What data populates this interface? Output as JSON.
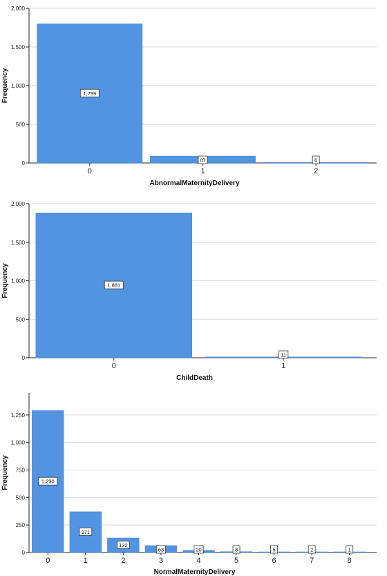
{
  "chart_data": [
    {
      "type": "bar",
      "title": "",
      "xlabel": "AbnormalMaternityDelivery",
      "ylabel": "Frequency",
      "categories": [
        "0",
        "1",
        "2"
      ],
      "values": [
        1799,
        87,
        6
      ],
      "data_labels": [
        "1,799",
        "87",
        "6"
      ],
      "ylim": [
        0,
        2000
      ],
      "yticks": [
        0,
        500,
        1000,
        1500,
        2000
      ],
      "ytick_labels": [
        "0",
        "500",
        "1,000",
        "1,500",
        "2,000"
      ],
      "grid": true,
      "legend": "none",
      "colors": {
        "bar": "#5293e2",
        "bar_edge": "#4a86d0",
        "grid": "#d9d9d9",
        "axis": "#222222"
      }
    },
    {
      "type": "bar",
      "title": "",
      "xlabel": "ChildDeath",
      "ylabel": "Frequency",
      "categories": [
        "0",
        "1"
      ],
      "values": [
        1881,
        11
      ],
      "data_labels": [
        "1,881",
        "11"
      ],
      "ylim": [
        0,
        2000
      ],
      "yticks": [
        0,
        500,
        1000,
        1500,
        2000
      ],
      "ytick_labels": [
        "0",
        "500",
        "1,000",
        "1,500",
        "2,000"
      ],
      "grid": true,
      "legend": "none",
      "colors": {
        "bar": "#5293e2",
        "bar_edge": "#4a86d0",
        "grid": "#d9d9d9",
        "axis": "#222222"
      }
    },
    {
      "type": "bar",
      "title": "",
      "xlabel": "NormalMaternityDelivery",
      "ylabel": "Frequency",
      "categories": [
        "0",
        "1",
        "2",
        "3",
        "4",
        "5",
        "6",
        "7",
        "8"
      ],
      "values": [
        1290,
        371,
        132,
        63,
        20,
        8,
        5,
        2,
        1
      ],
      "data_labels": [
        "1,290",
        "371",
        "132",
        "63",
        "20",
        "8",
        "5",
        "2",
        "1"
      ],
      "ylim": [
        0,
        1450
      ],
      "yticks": [
        0,
        250,
        500,
        750,
        1000,
        1250
      ],
      "ytick_labels": [
        "0",
        "250",
        "500",
        "750",
        "1,000",
        "1,250"
      ],
      "grid": true,
      "legend": "none",
      "colors": {
        "bar": "#5293e2",
        "bar_edge": "#4a86d0",
        "grid": "#d9d9d9",
        "axis": "#222222"
      }
    }
  ]
}
